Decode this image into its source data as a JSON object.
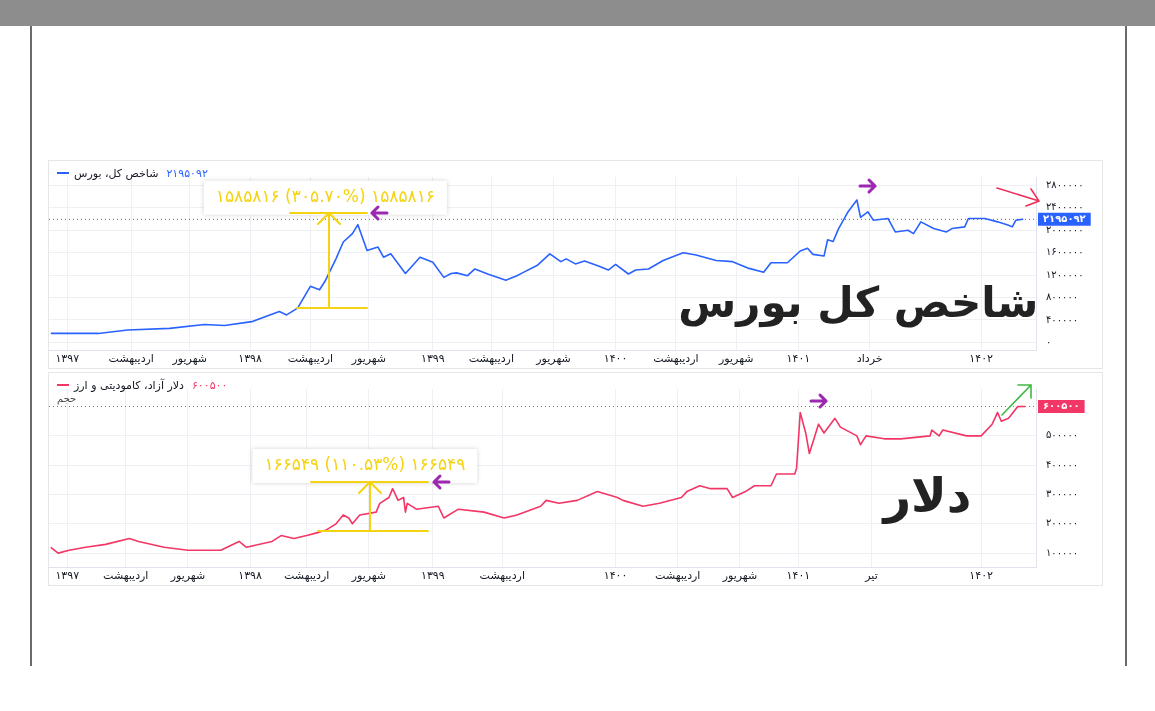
{
  "chart_data": [
    {
      "type": "line",
      "legend": "top left",
      "grid": true,
      "marker": "none",
      "series": [
        {
          "name": "شاخص کل، بورس",
          "color": "#2962ff",
          "x": [
            1396.91,
            1397.17,
            1397.33,
            1397.56,
            1397.75,
            1397.86,
            1398.01,
            1398.16,
            1398.2,
            1398.26,
            1398.33,
            1398.38,
            1398.41,
            1398.47,
            1398.51,
            1398.56,
            1398.59,
            1398.64,
            1398.7,
            1398.73,
            1398.77,
            1398.85,
            1398.93,
            1399.0,
            1399.06,
            1399.1,
            1399.13,
            1399.19,
            1399.23,
            1399.3,
            1399.4,
            1399.46,
            1399.49,
            1399.57,
            1399.64,
            1399.7,
            1399.73,
            1399.78,
            1399.83,
            1399.91,
            1399.96,
            1400.0,
            1400.07,
            1400.11,
            1400.18,
            1400.26,
            1400.37,
            1400.44,
            1400.55,
            1400.64,
            1400.73,
            1400.81,
            1400.85,
            1400.94,
            1401.01,
            1401.05,
            1401.08,
            1401.14,
            1401.16,
            1401.19,
            1401.22,
            1401.27,
            1401.32,
            1401.34,
            1401.38,
            1401.41,
            1401.49,
            1401.53,
            1401.6,
            1401.63,
            1401.67,
            1401.74,
            1401.81,
            1401.84,
            1401.91,
            1401.93,
            1402.02,
            1402.09,
            1402.15,
            1402.17,
            1402.19,
            1402.23
          ],
          "values": [
            160000,
            160000,
            220000,
            250000,
            320000,
            300000,
            370000,
            550000,
            490000,
            610000,
            1000000,
            940000,
            1090000,
            1490000,
            1790000,
            1940000,
            2100000,
            1640000,
            1700000,
            1520000,
            1580000,
            1230000,
            1520000,
            1430000,
            1160000,
            1230000,
            1240000,
            1190000,
            1310000,
            1220000,
            1110000,
            1190000,
            1240000,
            1370000,
            1580000,
            1440000,
            1490000,
            1400000,
            1450000,
            1360000,
            1290000,
            1390000,
            1220000,
            1290000,
            1310000,
            1460000,
            1600000,
            1560000,
            1460000,
            1440000,
            1320000,
            1250000,
            1420000,
            1420000,
            1630000,
            1680000,
            1570000,
            1540000,
            1830000,
            1800000,
            2030000,
            2320000,
            2540000,
            2230000,
            2330000,
            2180000,
            2210000,
            1970000,
            2000000,
            1940000,
            2150000,
            2030000,
            1970000,
            2030000,
            2060000,
            2210000,
            2210000,
            2150000,
            2090000,
            2060000,
            2180000,
            2195092
          ]
        }
      ],
      "xlim": [
        1396.9,
        1402.3
      ],
      "xticks": [
        {
          "value": 1397,
          "label": "۱۳۹۷"
        },
        {
          "value": 1397.35,
          "label": "اردیبهشت"
        },
        {
          "value": 1397.67,
          "label": "شهریور"
        },
        {
          "value": 1398,
          "label": "۱۳۹۸"
        },
        {
          "value": 1398.33,
          "label": "اردیبهشت"
        },
        {
          "value": 1398.65,
          "label": "شهریور"
        },
        {
          "value": 1399,
          "label": "۱۳۹۹"
        },
        {
          "value": 1399.32,
          "label": "اردیبهشت"
        },
        {
          "value": 1399.66,
          "label": "شهریور"
        },
        {
          "value": 1400,
          "label": "۱۴۰۰"
        },
        {
          "value": 1400.33,
          "label": "اردیبهشت"
        },
        {
          "value": 1400.66,
          "label": "شهریور"
        },
        {
          "value": 1401,
          "label": "۱۴۰۱"
        },
        {
          "value": 1401.39,
          "label": "خرداد"
        },
        {
          "value": 1402,
          "label": "۱۴۰۲"
        }
      ],
      "ylim": [
        -150000,
        2950000
      ],
      "yticks": [
        {
          "value": 0,
          "label": "۰"
        },
        {
          "value": 400000,
          "label": "۴۰۰۰۰۰"
        },
        {
          "value": 800000,
          "label": "۸۰۰۰۰۰"
        },
        {
          "value": 1200000,
          "label": "۱۲۰۰۰۰۰"
        },
        {
          "value": 1600000,
          "label": "۱۶۰۰۰۰۰"
        },
        {
          "value": 2000000,
          "label": "۲۰۰۰۰۰۰"
        },
        {
          "value": 2400000,
          "label": "۲۴۰۰۰۰۰"
        },
        {
          "value": 2800000,
          "label": "۲۸۰۰۰۰۰"
        }
      ],
      "ref_lines": [
        {
          "axis": "y",
          "value": 2195092,
          "label": "۲۱۹۵۰۹۲",
          "color": "#2962ff",
          "line_style": "dotted"
        }
      ],
      "annotations": [
        "۱۵۸۵۸۱۶ (۳۰۵.۷۰%) ۱۵۸۵۸۱۶",
        "شاخص کل بورس"
      ]
    },
    {
      "type": "line",
      "legend": "top left",
      "grid": true,
      "marker": "none",
      "series": [
        {
          "name": "دلار آزاد، کامودیتی و ارز",
          "color": "#f23665",
          "x": [
            1396.91,
            1396.95,
            1397.01,
            1397.1,
            1397.21,
            1397.34,
            1397.39,
            1397.53,
            1397.66,
            1397.84,
            1397.94,
            1397.98,
            1398.12,
            1398.17,
            1398.24,
            1398.31,
            1398.37,
            1398.42,
            1398.47,
            1398.51,
            1398.54,
            1398.56,
            1398.6,
            1398.69,
            1398.71,
            1398.76,
            1398.78,
            1398.81,
            1398.84,
            1398.85,
            1398.86,
            1398.91,
            1399.03,
            1399.06,
            1399.14,
            1399.28,
            1399.39,
            1399.46,
            1399.59,
            1399.62,
            1399.69,
            1399.79,
            1399.9,
            1400.01,
            1400.04,
            1400.15,
            1400.24,
            1400.36,
            1400.39,
            1400.46,
            1400.52,
            1400.61,
            1400.64,
            1400.71,
            1400.76,
            1400.85,
            1400.88,
            1400.98,
            1400.99,
            1401.01,
            1401.04,
            1401.06,
            1401.09,
            1401.11,
            1401.14,
            1401.2,
            1401.23,
            1401.32,
            1401.34,
            1401.37,
            1401.47,
            1401.56,
            1401.72,
            1401.73,
            1401.77,
            1401.79,
            1401.92,
            1402.0,
            1402.06,
            1402.09,
            1402.11,
            1402.15,
            1402.2,
            1402.24
          ],
          "values": [
            120000,
            100000,
            110000,
            120000,
            130000,
            150000,
            140000,
            120000,
            110000,
            110000,
            140000,
            120000,
            140000,
            160000,
            150000,
            160000,
            170000,
            180000,
            200000,
            230000,
            220000,
            200000,
            230000,
            240000,
            270000,
            290000,
            320000,
            280000,
            290000,
            240000,
            270000,
            250000,
            260000,
            220000,
            250000,
            240000,
            220000,
            230000,
            260000,
            280000,
            270000,
            280000,
            310000,
            290000,
            280000,
            260000,
            270000,
            290000,
            310000,
            330000,
            320000,
            320000,
            290000,
            310000,
            330000,
            330000,
            370000,
            370000,
            390000,
            580000,
            510000,
            440000,
            500000,
            540000,
            510000,
            560000,
            530000,
            500000,
            470000,
            500000,
            490000,
            490000,
            500000,
            520000,
            500000,
            520000,
            500000,
            500000,
            540000,
            580000,
            550000,
            560000,
            600000,
            600500
          ]
        }
      ],
      "xlim": [
        1396.9,
        1402.3
      ],
      "xticks": [
        {
          "value": 1397,
          "label": "۱۳۹۷"
        },
        {
          "value": 1397.32,
          "label": "اردیبهشت"
        },
        {
          "value": 1397.66,
          "label": "شهریور"
        },
        {
          "value": 1398,
          "label": "۱۳۹۸"
        },
        {
          "value": 1398.31,
          "label": "اردیبهشت"
        },
        {
          "value": 1398.65,
          "label": "شهریور"
        },
        {
          "value": 1399,
          "label": "۱۳۹۹"
        },
        {
          "value": 1399.38,
          "label": "اردیبهشت"
        },
        {
          "value": 1400,
          "label": "۱۴۰۰"
        },
        {
          "value": 1400.34,
          "label": "اردیبهشت"
        },
        {
          "value": 1400.68,
          "label": "شهریور"
        },
        {
          "value": 1401,
          "label": "۱۴۰۱"
        },
        {
          "value": 1401.4,
          "label": "تیر"
        },
        {
          "value": 1402,
          "label": "۱۴۰۲"
        }
      ],
      "ylim": [
        50000,
        660000
      ],
      "yticks": [
        {
          "value": 100000,
          "label": "۱۰۰۰۰۰"
        },
        {
          "value": 200000,
          "label": "۲۰۰۰۰۰"
        },
        {
          "value": 300000,
          "label": "۳۰۰۰۰۰"
        },
        {
          "value": 400000,
          "label": "۴۰۰۰۰۰"
        },
        {
          "value": 500000,
          "label": "۵۰۰۰۰۰"
        }
      ],
      "ref_lines": [
        {
          "axis": "y",
          "value": 600500,
          "label": "۶۰۰۵۰۰",
          "color": "#f23665",
          "line_style": "dotted"
        }
      ],
      "annotations": [
        "۱۶۶۵۴۹ (۱۱۰.۵۳%) ۱۶۶۵۴۹",
        "دلار",
        "حجم"
      ]
    }
  ]
}
